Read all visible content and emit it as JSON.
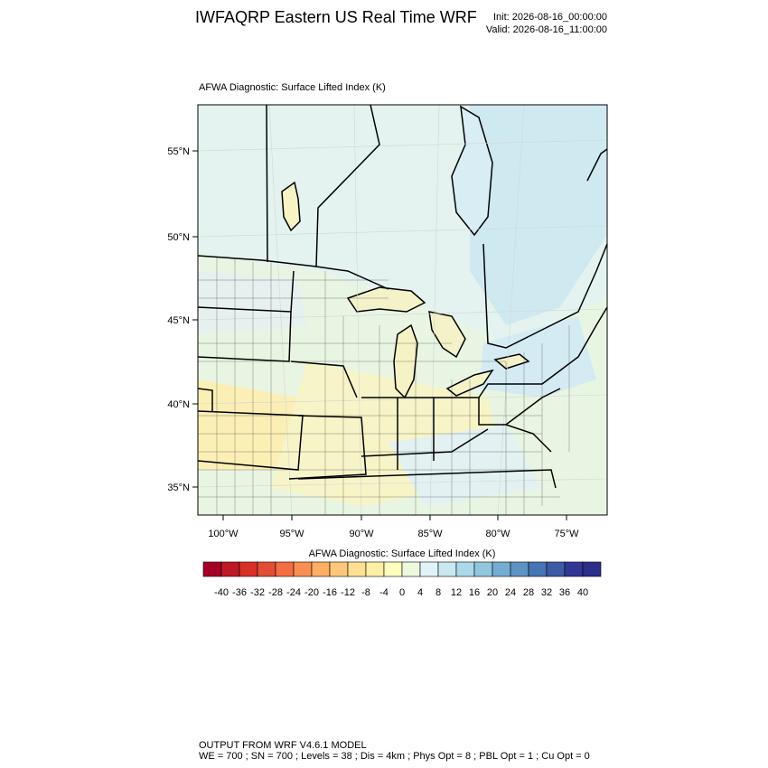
{
  "header": {
    "title": "IWFAQRP Eastern US Real Time WRF",
    "init": "Init: 2026-08-16_00:00:00",
    "valid": "Valid: 2026-08-16_11:00:00"
  },
  "map": {
    "title": "AFWA Diagnostic: Surface Lifted Index   (K)",
    "lat_labels": [
      "55°N",
      "50°N",
      "45°N",
      "40°N",
      "35°N"
    ],
    "lon_labels": [
      "100°W",
      "95°W",
      "90°W",
      "85°W",
      "80°W",
      "75°W"
    ]
  },
  "colorbar": {
    "title": "AFWA Diagnostic: Surface Lifted Index  (K)",
    "levels": [
      -40,
      -36,
      -32,
      -28,
      -24,
      -20,
      -16,
      -12,
      -8,
      -4,
      0,
      4,
      8,
      12,
      16,
      20,
      24,
      28,
      32,
      36,
      40
    ],
    "colors": [
      "#a50026",
      "#be1827",
      "#d73027",
      "#e34d33",
      "#f46d43",
      "#f98e52",
      "#fdae61",
      "#fec779",
      "#fee090",
      "#feefa6",
      "#ffffbf",
      "#eef8dc",
      "#e0f3f8",
      "#c9e8f1",
      "#abd9e9",
      "#92c5de",
      "#74add1",
      "#5e92c4",
      "#4575b4",
      "#3d5aa5",
      "#313695",
      "#2a2f8a"
    ]
  },
  "footer": {
    "line1": "OUTPUT FROM WRF V4.6.1 MODEL",
    "line2": "WE = 700 ; SN = 700 ; Levels = 38 ; Dis = 4km ; Phys Opt = 8 ; PBL Opt = 1 ; Cu Opt = 0"
  }
}
